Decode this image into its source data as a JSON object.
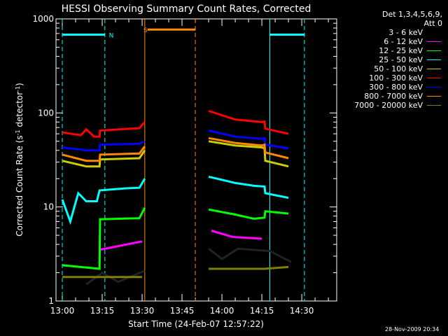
{
  "chart_data": {
    "type": "line",
    "title": "HESSI Observing Summary Count Rates, Corrected",
    "xlabel": "Start Time (24-Feb-07 12:57:22)",
    "ylabel": "Corrected Count Rate (s",
    "ylabel_sup1": "-1",
    "ylabel_mid": " detector",
    "ylabel_sup2": "-1",
    "ylabel_end": ")",
    "yscale": "log",
    "xlim_minutes": [
      -2.37,
      103.13
    ],
    "ylim": [
      1,
      1000
    ],
    "x_ticks": [
      "13:00",
      "13:15",
      "13:30",
      "13:45",
      "14:00",
      "14:15",
      "14:30"
    ],
    "y_ticks": [
      "1",
      "10",
      "100",
      "1000"
    ],
    "legend_header": [
      "Det 1,3,4,5,6,9,",
      "Att 0"
    ],
    "series": [
      {
        "name": "3 - 6 keV",
        "color": "#000000",
        "segments": [
          [
            [
              9,
              1.5
            ],
            [
              15,
              2
            ],
            [
              21,
              1.6
            ],
            [
              31,
              2.1
            ]
          ],
          [
            [
              55,
              3.6
            ],
            [
              60,
              2.8
            ],
            [
              66,
              3.6
            ],
            [
              78,
              3.4
            ],
            [
              86,
              2.6
            ]
          ]
        ]
      },
      {
        "name": "6 - 12 keV",
        "color": "#ff00ff",
        "segments": [
          [
            [
              14,
              3.5
            ],
            [
              30,
              4.3
            ]
          ],
          [
            [
              56,
              5.6
            ],
            [
              64,
              4.8
            ],
            [
              75,
              4.6
            ]
          ]
        ]
      },
      {
        "name": "12 - 25 keV",
        "color": "#00ff00",
        "segments": [
          [
            [
              0,
              2.4
            ],
            [
              14,
              2.2
            ],
            [
              14.2,
              7.4
            ],
            [
              29,
              7.6
            ],
            [
              31,
              9.8
            ]
          ],
          [
            [
              55,
              9.4
            ],
            [
              65,
              8.3
            ],
            [
              72,
              7.5
            ],
            [
              76,
              7.7
            ],
            [
              76.3,
              9
            ],
            [
              85,
              8.5
            ]
          ]
        ]
      },
      {
        "name": "25 - 50 keV",
        "color": "#00ffff",
        "segments": [
          [
            [
              0,
              12
            ],
            [
              3,
              7
            ],
            [
              6,
              14
            ],
            [
              9,
              11.5
            ],
            [
              13,
              11.5
            ],
            [
              14,
              15
            ],
            [
              24,
              15.8
            ],
            [
              29,
              16
            ],
            [
              31,
              20
            ]
          ],
          [
            [
              55,
              21
            ],
            [
              65,
              18
            ],
            [
              72,
              16.8
            ],
            [
              76,
              16.5
            ],
            [
              76.3,
              14
            ],
            [
              85,
              12.5
            ]
          ]
        ]
      },
      {
        "name": "50 - 100 keV",
        "color": "#cccc00",
        "segments": [
          [
            [
              0,
              31
            ],
            [
              9,
              27
            ],
            [
              14,
              27
            ],
            [
              14.2,
              32
            ],
            [
              29,
              33
            ],
            [
              31,
              40
            ]
          ],
          [
            [
              55,
              50
            ],
            [
              65,
              45
            ],
            [
              75,
              43
            ],
            [
              76,
              42
            ],
            [
              76.3,
              31
            ],
            [
              85,
              27
            ]
          ]
        ]
      },
      {
        "name": "100 - 300 keV",
        "color": "#ff0000",
        "segments": [
          [
            [
              0,
              62
            ],
            [
              7,
              58
            ],
            [
              9,
              67
            ],
            [
              12,
              56
            ],
            [
              14,
              56
            ],
            [
              14.2,
              65
            ],
            [
              29,
              69
            ],
            [
              31,
              80
            ]
          ],
          [
            [
              55,
              105
            ],
            [
              65,
              85
            ],
            [
              75,
              80
            ],
            [
              76,
              81
            ],
            [
              76.3,
              68
            ],
            [
              85,
              60
            ]
          ]
        ]
      },
      {
        "name": "300 - 800 keV",
        "color": "#0000ff",
        "segments": [
          [
            [
              0,
              43
            ],
            [
              9,
              40
            ],
            [
              14,
              40
            ],
            [
              14.2,
              46
            ],
            [
              29,
              47
            ],
            [
              31,
              50
            ]
          ],
          [
            [
              55,
              65
            ],
            [
              65,
              56
            ],
            [
              75,
              53
            ],
            [
              76,
              54
            ],
            [
              76.3,
              46
            ],
            [
              85,
              42
            ]
          ]
        ]
      },
      {
        "name": "800 - 7000 keV",
        "color": "#ff8800",
        "segments": [
          [
            [
              0,
              36
            ],
            [
              9,
              31
            ],
            [
              14,
              31
            ],
            [
              14.2,
              36
            ],
            [
              29,
              37
            ],
            [
              31,
              44
            ]
          ],
          [
            [
              55,
              54
            ],
            [
              65,
              48
            ],
            [
              75,
              45
            ],
            [
              76,
              46
            ],
            [
              76.3,
              38
            ],
            [
              85,
              33
            ]
          ]
        ]
      },
      {
        "name": "7000 - 20000 keV",
        "color": "#808000",
        "segments": [
          [
            [
              0,
              1.8
            ],
            [
              14,
              1.8
            ],
            [
              30,
              1.8
            ]
          ],
          [
            [
              55,
              2.2
            ],
            [
              76,
              2.2
            ],
            [
              85,
              2.3
            ]
          ]
        ]
      }
    ],
    "intervals": [
      {
        "label": "N",
        "color": "#00ffff",
        "start": 0,
        "end": 16,
        "level": 680,
        "label_at": 17
      },
      {
        "label": "",
        "color": "#00ffff",
        "start": 78,
        "end": 91,
        "level": 680,
        "label_at": null
      },
      {
        "label": "S",
        "color": "#ff8800",
        "start": 32,
        "end": 50,
        "level": 770,
        "label_at": 30
      }
    ],
    "vlines": [
      {
        "x": 0,
        "color": "#00ffff",
        "dash": true
      },
      {
        "x": 16,
        "color": "#00ffff",
        "dash": true
      },
      {
        "x": 31,
        "color": "#ff8800",
        "dash": false
      },
      {
        "x": 50,
        "color": "#ff8800",
        "dash": true
      },
      {
        "x": 78,
        "color": "#00ffff",
        "dash": false
      },
      {
        "x": 91,
        "color": "#00ffff",
        "dash": true
      }
    ]
  },
  "timestamp": "28-Nov-2009 20:34"
}
